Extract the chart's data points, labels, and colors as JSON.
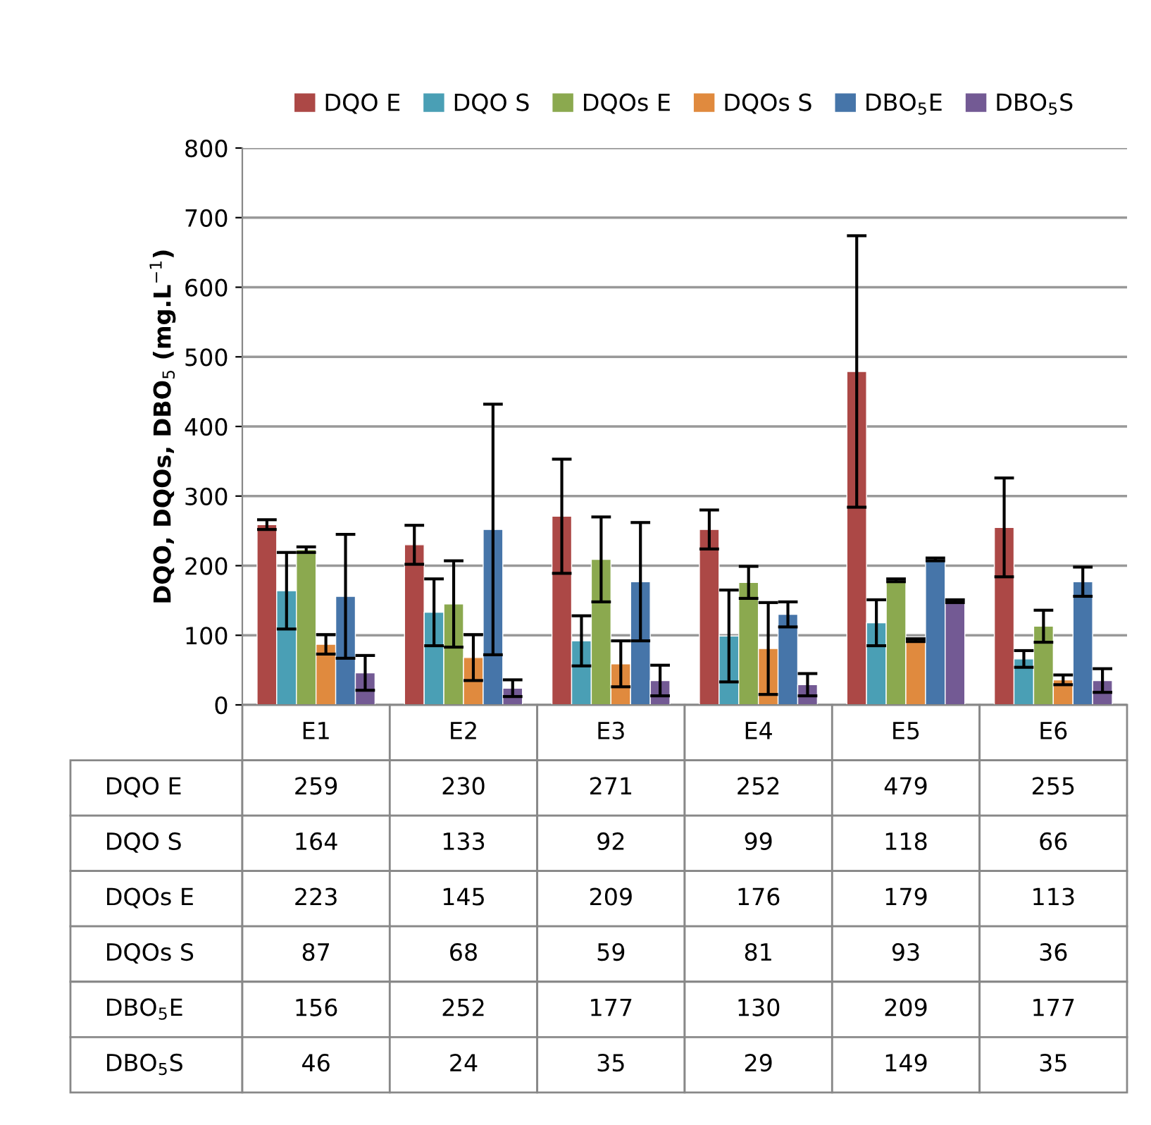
{
  "chart_data": {
    "type": "bar",
    "ylabel": "DQO, DQOs, DBO$_{5}$ (mg.L$^{−1}$)",
    "categories": [
      "E1",
      "E2",
      "E3",
      "E4",
      "E5",
      "E6"
    ],
    "series": [
      {
        "name": "DQO E",
        "color": "#ac4846",
        "values": [
          259,
          230,
          271,
          252,
          479,
          255
        ],
        "errors": [
          7,
          28,
          82,
          28,
          195,
          71
        ]
      },
      {
        "name": "DQO S",
        "color": "#4a9fb5",
        "values": [
          164,
          133,
          92,
          99,
          118,
          66
        ],
        "errors": [
          55,
          48,
          36,
          66,
          33,
          12
        ]
      },
      {
        "name": "DQOs E",
        "color": "#8ba94f",
        "values": [
          223,
          145,
          209,
          176,
          179,
          113
        ],
        "errors": [
          4,
          62,
          61,
          23,
          2,
          23
        ]
      },
      {
        "name": "DQOs S",
        "color": "#e08a3e",
        "values": [
          87,
          68,
          59,
          81,
          93,
          36
        ],
        "errors": [
          14,
          33,
          33,
          66,
          2,
          7
        ]
      },
      {
        "name": "DBO$_{5}$E",
        "color": "#4675a9",
        "values": [
          156,
          252,
          177,
          130,
          209,
          177
        ],
        "errors": [
          89,
          180,
          85,
          18,
          2,
          21
        ]
      },
      {
        "name": "DBO$_{5}$S",
        "color": "#735a94",
        "values": [
          46,
          24,
          35,
          29,
          149,
          35
        ],
        "errors": [
          25,
          12,
          22,
          16,
          2,
          17
        ]
      }
    ],
    "ylim": [
      0,
      800
    ],
    "yticks": [
      0,
      100,
      200,
      300,
      400,
      500,
      600,
      700,
      800
    ],
    "grid": "y",
    "legend": "top",
    "data_labels": true
  }
}
